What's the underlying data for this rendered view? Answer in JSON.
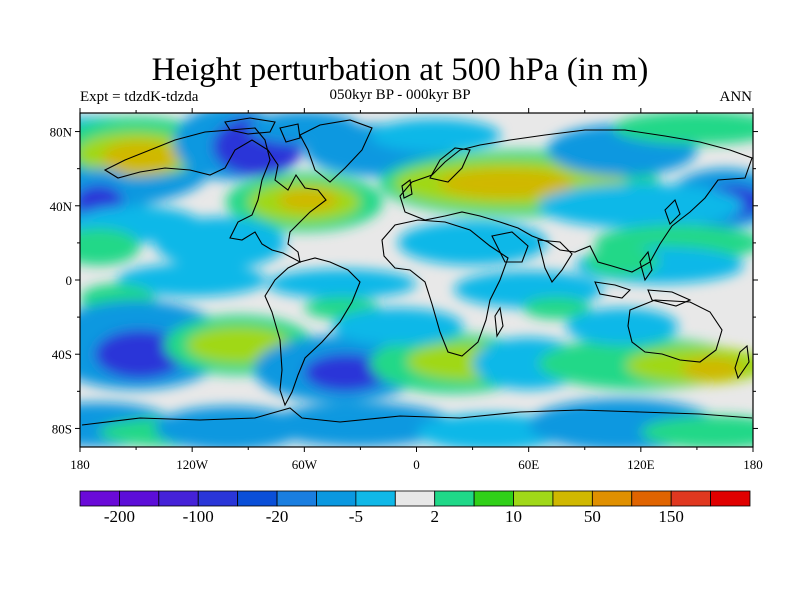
{
  "title": "Height perturbation at 500 hPa (in m)",
  "subtitle": {
    "left": "Expt = tdzdK-tdzda",
    "center": "050kyr BP - 000kyr BP",
    "right": "ANN"
  },
  "map": {
    "lat_range": [
      -90,
      90
    ],
    "lon_range": [
      -180,
      180
    ],
    "lat_ticks": [
      "80N",
      "40N",
      "0",
      "40S",
      "80S"
    ],
    "lon_ticks": [
      "180",
      "120W",
      "60W",
      "0",
      "60E",
      "120E",
      "180"
    ],
    "variable": "500 hPa geopotential height perturbation",
    "units": "m"
  },
  "colorbar": {
    "colors": [
      "#6a0ad8",
      "#5c0ed8",
      "#4522d8",
      "#2a36d8",
      "#0a4fd8",
      "#1a7ee0",
      "#0a98e0",
      "#10b8e8",
      "#e8e8e8",
      "#20d888",
      "#30d018",
      "#a0d818",
      "#d0b800",
      "#e09000",
      "#e06400",
      "#e03820",
      "#e00000"
    ],
    "labels": [
      "-200",
      "-100",
      "-20",
      "-5",
      "2",
      "10",
      "50",
      "150"
    ]
  },
  "field_palette": {
    "strong_negative": "#2a36d8",
    "medium_negative": "#0a98e0",
    "weak_negative": "#10b8e8",
    "neutral": "#e8e8e8",
    "weak_positive": "#20d888",
    "medium_positive": "#a0d818",
    "strong_positive": "#d0b800"
  }
}
